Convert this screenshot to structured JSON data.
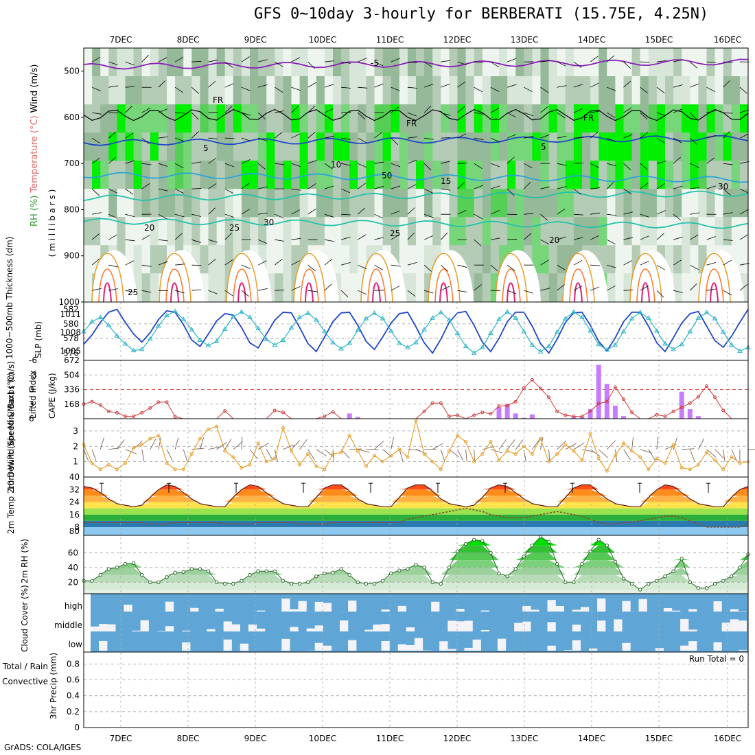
{
  "title": "GFS 0~10day 3-hourly for BERBERATI (15.75E, 4.25N)",
  "credit": "GrADS: COLA/IGES",
  "dates": [
    "7DEC",
    "8DEC",
    "9DEC",
    "10DEC",
    "11DEC",
    "12DEC",
    "13DEC",
    "14DEC",
    "15DEC",
    "16DEC"
  ],
  "chart_data": [
    {
      "type": "heatmap",
      "panel": "upper-air",
      "ylabel_parts": [
        "RH (%)",
        "Temperature (°C)",
        "Wind (m/s)"
      ],
      "ylabel_units": "( m i l l i b a r s )",
      "yticks": [
        "500",
        "600",
        "700",
        "800",
        "900",
        "1000"
      ],
      "ylim": [
        1000,
        450
      ],
      "isotherm_labels": [
        "-5",
        "FR",
        "5",
        "10",
        "15",
        "20",
        "25",
        "30",
        "50"
      ],
      "freezing_level_mb": 595,
      "isotherms_mb": {
        "-5": 490,
        "5": 655,
        "10": 725,
        "15": 775,
        "20": 825
      }
    },
    {
      "type": "line",
      "panel": "thickness-slp",
      "ylabel_left": "1000~500mb Thickness (dm)",
      "ylabel_right": "SLP (mb)",
      "yticks_left": [
        "576",
        "578",
        "580",
        "582"
      ],
      "yticks_right": [
        "1005",
        "1008",
        "1011"
      ],
      "series": [
        {
          "name": "1000~500mb Thickness (dm)",
          "color": "#1f45c8",
          "values": [
            577.2,
            578.5,
            580.2,
            581.6,
            582.0,
            580.2,
            578.6,
            577.5,
            578.8,
            580.6,
            581.8,
            581.6,
            579.9,
            577.8,
            576.9,
            578.6,
            580.4,
            581.4,
            581.2,
            579.5,
            577.4,
            576.7,
            578.6,
            580.5,
            581.6,
            581.5,
            579.5,
            577.3,
            576.2,
            578.2,
            580.3,
            581.5,
            581.6,
            579.8,
            577.6,
            576.5,
            578.2,
            580.1,
            581.4,
            581.6,
            579.6,
            577.4,
            576.0,
            577.9,
            580.2,
            581.5,
            581.7,
            579.8,
            577.5,
            576.2,
            578.0,
            580.3,
            581.6,
            581.6,
            579.7,
            577.3,
            576.0,
            577.9,
            580.2,
            581.5,
            581.6,
            579.8,
            577.6,
            576.3,
            578.1,
            580.3,
            581.6,
            581.6,
            579.7,
            577.4,
            576.2,
            578.1,
            580.1,
            581.4,
            581.7,
            579.7,
            577.7,
            576.8,
            578.3,
            580.2,
            582.0
          ]
        },
        {
          "name": "SLP (mb)",
          "color": "#2ab5c5",
          "values": [
            1008.2,
            1009.8,
            1010.5,
            1009.2,
            1007.5,
            1006.2,
            1005.1,
            1005.3,
            1007.0,
            1009.1,
            1010.8,
            1011.5,
            1010.2,
            1008.5,
            1006.8,
            1005.9,
            1006.6,
            1008.6,
            1010.6,
            1011.4,
            1010.5,
            1008.7,
            1006.9,
            1006.0,
            1006.8,
            1008.8,
            1010.5,
            1011.2,
            1010.1,
            1008.2,
            1006.4,
            1005.4,
            1006.3,
            1008.4,
            1010.3,
            1011.2,
            1010.3,
            1008.3,
            1006.3,
            1005.6,
            1006.4,
            1008.5,
            1010.4,
            1011.3,
            1010.1,
            1007.9,
            1005.8,
            1004.7,
            1005.6,
            1007.9,
            1010.2,
            1011.4,
            1010.4,
            1008.2,
            1006.0,
            1004.9,
            1005.8,
            1008.1,
            1010.3,
            1011.4,
            1010.5,
            1008.3,
            1006.1,
            1005.2,
            1006.0,
            1008.2,
            1010.3,
            1011.3,
            1010.4,
            1008.3,
            1006.2,
            1005.3,
            1006.1,
            1008.2,
            1010.4,
            1011.3,
            1010.3,
            1008.1,
            1006.0,
            1005.0,
            1005.6
          ]
        }
      ]
    },
    {
      "type": "bar",
      "panel": "stability",
      "ylabel_left": "Lifted Index",
      "ylabel_right": "CAPE (J/kg)",
      "yticks_left": [
        "-6",
        "-3",
        "0",
        "3",
        "6"
      ],
      "yticks_right": [
        "168",
        "336",
        "504",
        "672"
      ],
      "series": [
        {
          "name": "Lifted Index",
          "color": "#d03a3a",
          "values": [
            3.0,
            2.5,
            3.2,
            4.5,
            4.8,
            5.5,
            5.5,
            4.8,
            3.8,
            2.6,
            2.6,
            5.6,
            6,
            6,
            6,
            6,
            6,
            4.4,
            6,
            6,
            6,
            6,
            6,
            4.3,
            4.7,
            6,
            6,
            6,
            6,
            5.5,
            4.6,
            6,
            6,
            6,
            6,
            6,
            6,
            6,
            6,
            6,
            6,
            4.5,
            2.8,
            2.8,
            5.5,
            5.3,
            6,
            5.3,
            4.7,
            5.0,
            3.4,
            3.3,
            2.5,
            -0.3,
            -2.0,
            -0.2,
            1.6,
            4.5,
            5.3,
            5.5,
            5.5,
            4.5,
            2.9,
            2.5,
            -0.5,
            2.0,
            4.7,
            6,
            6,
            5.2,
            5.5,
            4.5,
            3.7,
            2.8,
            1.5,
            -0.7,
            1.6,
            4.3,
            6,
            6,
            6
          ]
        },
        {
          "name": "CAPE (J/kg)",
          "color": "#c77bff",
          "values": [
            0,
            0,
            0,
            0,
            0,
            0,
            0,
            0,
            0,
            0,
            0,
            0,
            0,
            0,
            0,
            0,
            0,
            0,
            0,
            0,
            0,
            0,
            0,
            0,
            0,
            0,
            0,
            0,
            0,
            0,
            0,
            0,
            60,
            20,
            0,
            0,
            0,
            0,
            0,
            0,
            0,
            0,
            0,
            0,
            0,
            0,
            0,
            0,
            0,
            0,
            130,
            170,
            60,
            10,
            50,
            0,
            0,
            0,
            0,
            20,
            20,
            110,
            620,
            400,
            150,
            30,
            0,
            0,
            0,
            0,
            0,
            0,
            310,
            110,
            30,
            0,
            0,
            0,
            0,
            0,
            0
          ]
        }
      ]
    },
    {
      "type": "line",
      "panel": "wind10m",
      "ylabel": "10m Wind Speed & Barbs (m/s)",
      "yticks": [
        "1",
        "2",
        "3"
      ],
      "series": [
        {
          "name": "10m Wind Speed",
          "color": "#e8a030",
          "values": [
            2.1,
            0.9,
            0.5,
            0.8,
            0.5,
            0.9,
            1.9,
            2.1,
            2.5,
            2.7,
            0.9,
            0.5,
            0.5,
            1.5,
            2.5,
            3.1,
            3.3,
            1.7,
            1.3,
            0.6,
            0.8,
            2.2,
            1.0,
            1.2,
            3.2,
            1.7,
            0.8,
            1.5,
            0.7,
            0.5,
            1.5,
            1.6,
            2.7,
            1.7,
            0.7,
            1.4,
            1.0,
            1.4,
            1.8,
            1.3,
            3.7,
            1.5,
            1.0,
            0.5,
            1.7,
            2.7,
            2.3,
            1.0,
            1.5,
            2.3,
            1.1,
            1.7,
            1.5,
            2.0,
            1.5,
            2.5,
            1.0,
            1.5,
            2.1,
            1.7,
            1.1,
            2.8,
            1.2,
            0.4,
            1.4,
            2.2,
            1.7,
            1.3,
            0.5,
            1.2,
            0.9,
            2.1,
            0.6,
            0.5,
            0.8,
            1.6,
            1.1,
            0.5,
            1.3,
            0.9,
            1.0
          ]
        }
      ]
    },
    {
      "type": "area",
      "panel": "temperature",
      "ylabel": "2m Temp 2m DewPt (6hr Min/Max) (°C)",
      "yticks": [
        "8",
        "16",
        "24",
        "32",
        "40"
      ],
      "series": [
        {
          "name": "2m Temp",
          "color": "#a02020",
          "values": [
            34,
            33,
            30,
            26,
            23,
            22,
            21,
            22,
            27,
            32,
            35,
            34,
            30,
            26,
            23,
            22,
            21,
            21,
            27,
            32,
            35,
            34,
            30,
            26,
            23,
            22,
            21,
            21,
            27,
            33,
            35,
            35,
            31,
            26,
            23,
            22,
            21,
            21,
            27,
            33,
            35,
            35,
            31,
            26,
            23,
            22,
            21,
            22,
            27,
            33,
            35,
            34,
            30,
            26,
            23,
            22,
            21,
            21,
            27,
            33,
            35,
            35,
            30,
            26,
            23,
            22,
            21,
            21,
            27,
            32,
            35,
            34,
            30,
            26,
            23,
            22,
            21,
            21,
            27,
            32,
            34
          ]
        },
        {
          "name": "2m DewPt",
          "color": "#8b4a2a",
          "values": [
            11,
            11,
            11,
            11,
            11,
            11,
            11,
            11,
            10,
            10,
            10,
            11,
            11,
            11,
            11,
            11,
            11,
            10,
            10,
            10,
            10,
            11,
            11,
            11,
            11,
            11,
            10,
            10,
            10,
            10,
            11,
            11,
            11,
            11,
            11,
            11,
            11,
            11,
            11,
            13,
            14,
            15,
            16,
            17,
            18,
            19,
            20,
            19,
            18,
            16,
            15,
            14,
            14,
            14,
            15,
            16,
            17,
            18,
            17,
            16,
            15,
            13,
            11,
            10,
            10,
            11,
            11,
            12,
            13,
            14,
            15,
            15,
            14,
            12,
            10,
            8,
            8,
            8,
            8,
            8,
            10
          ]
        }
      ]
    },
    {
      "type": "area",
      "panel": "rh2m",
      "ylabel": "2m RH (%)",
      "yticks": [
        "20",
        "40",
        "60"
      ],
      "series": [
        {
          "name": "2m RH",
          "color": "#2a9a2a",
          "values": [
            22,
            22,
            30,
            38,
            40,
            45,
            46,
            30,
            20,
            20,
            27,
            33,
            34,
            38,
            38,
            35,
            20,
            18,
            18,
            22,
            30,
            35,
            35,
            35,
            22,
            18,
            18,
            20,
            28,
            32,
            33,
            38,
            30,
            20,
            18,
            18,
            22,
            32,
            36,
            38,
            44,
            40,
            20,
            18,
            40,
            62,
            72,
            78,
            76,
            60,
            32,
            28,
            38,
            55,
            70,
            82,
            75,
            45,
            20,
            20,
            45,
            62,
            78,
            70,
            48,
            25,
            18,
            10,
            18,
            22,
            28,
            35,
            52,
            20,
            12,
            12,
            18,
            22,
            28,
            40,
            58
          ]
        }
      ]
    },
    {
      "type": "bar",
      "panel": "cloud-cover",
      "ylabel": "Cloud Cover (%)",
      "row_labels": [
        "high",
        "middle",
        "low"
      ]
    },
    {
      "type": "bar",
      "panel": "precip",
      "ylabel_parts": [
        "Total / Rain",
        "Convective"
      ],
      "ylabel": "3hr Precip (mm)",
      "yticks": [
        "0",
        "0.2",
        "0.4",
        "0.6",
        "0.8"
      ],
      "annotation": "Run Total = 0",
      "values": []
    }
  ],
  "colors": {
    "rh_shades": [
      "#eef5ee",
      "#d7e6d8",
      "#b4ccb6",
      "#96b99a",
      "#77d57a",
      "#55cf55",
      "#00f000"
    ],
    "isotherm_blue": "#1f45c8",
    "isotherm_cyan": "#2aa4d8",
    "isotherm_teal": "#24c2a8",
    "isotherm_orange": "#e8a030",
    "isotherm_red": "#ff7a30",
    "isotherm_magenta": "#e0207a",
    "isotherm_purple": "#8a1fb8",
    "cloud_blue": "#5fa6d6",
    "cloud_white": "#f3f3f8"
  }
}
